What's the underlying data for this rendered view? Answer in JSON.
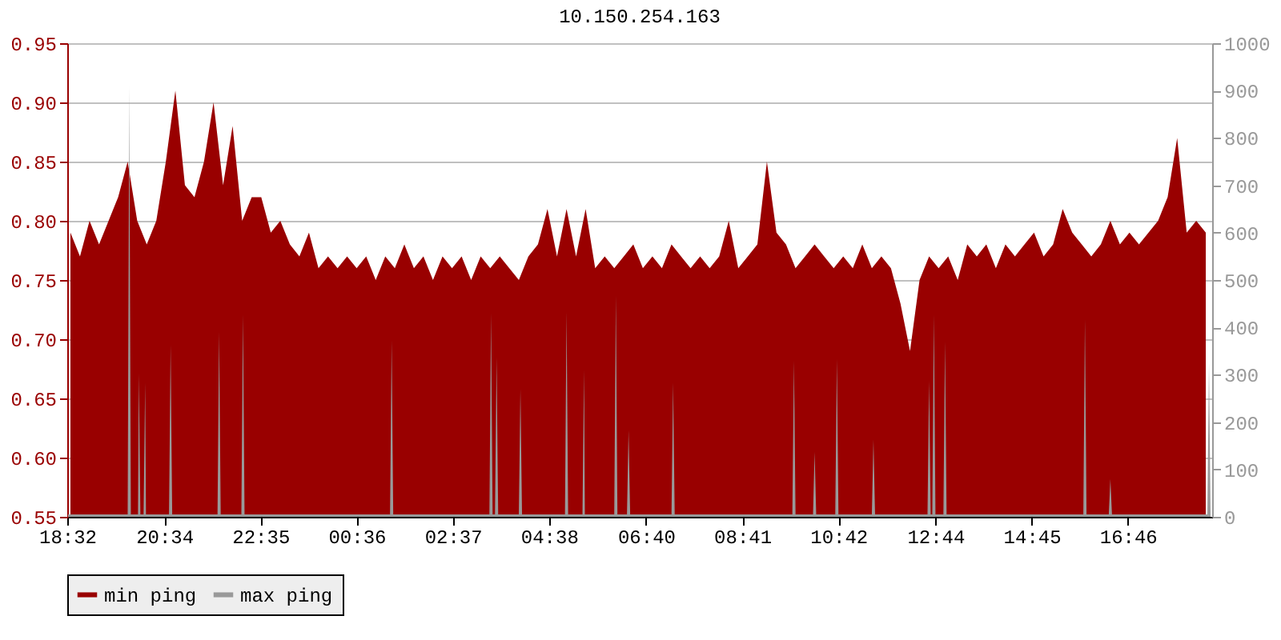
{
  "chart_data": {
    "type": "area",
    "title": "10.150.254.163",
    "xlim": [
      "--01-01T18:32",
      "--01-02T18:32"
    ],
    "xticks": [
      {
        "value": "--01-01T18:32",
        "label": "18:32"
      },
      {
        "value": "--01-01T20:34",
        "label": "20:34"
      },
      {
        "value": "--01-01T22:35",
        "label": "22:35"
      },
      {
        "value": "--01-02T00:36",
        "label": "00:36"
      },
      {
        "value": "--01-02T02:37",
        "label": "02:37"
      },
      {
        "value": "--01-02T04:38",
        "label": "04:38"
      },
      {
        "value": "--01-02T06:40",
        "label": "06:40"
      },
      {
        "value": "--01-02T08:41",
        "label": "08:41"
      },
      {
        "value": "--01-02T10:42",
        "label": "10:42"
      },
      {
        "value": "--01-02T12:44",
        "label": "12:44"
      },
      {
        "value": "--01-02T14:45",
        "label": "14:45"
      },
      {
        "value": "--01-02T16:46",
        "label": "16:46"
      }
    ],
    "ylim": [
      0.55,
      0.95
    ],
    "yticks": [
      0.55,
      {
        "value": 0.6,
        "label": "0.60"
      },
      0.65,
      {
        "value": 0.7,
        "label": "0.70"
      },
      0.75,
      {
        "value": 0.8,
        "label": "0.80"
      },
      0.85,
      {
        "value": 0.9,
        "label": "0.90"
      },
      0.95
    ],
    "y2lim": [
      0,
      1000
    ],
    "y2ticks": [
      0,
      100,
      200,
      300,
      400,
      500,
      600,
      700,
      800,
      900,
      1000
    ],
    "grid": "y",
    "legend": "bottom",
    "series": [
      {
        "name": "min ping",
        "color": "#990000",
        "x": [
          "--01-01T18:36",
          "--01-01T18:48",
          "--01-01T19:00",
          "--01-01T19:12",
          "--01-01T19:24",
          "--01-01T19:36",
          "--01-01T19:48",
          "--01-01T20:00",
          "--01-01T20:12",
          "--01-01T20:24",
          "--01-01T20:36",
          "--01-01T20:48",
          "--01-01T21:00",
          "--01-01T21:12",
          "--01-01T21:24",
          "--01-01T21:36",
          "--01-01T21:48",
          "--01-01T22:00",
          "--01-01T22:12",
          "--01-01T22:24",
          "--01-01T22:36",
          "--01-01T22:48",
          "--01-01T23:00",
          "--01-01T23:12",
          "--01-01T23:24",
          "--01-01T23:36",
          "--01-01T23:48",
          "--01-02T00:00",
          "--01-02T00:12",
          "--01-02T00:24",
          "--01-02T00:36",
          "--01-02T00:48",
          "--01-02T01:00",
          "--01-02T01:12",
          "--01-02T01:24",
          "--01-02T01:36",
          "--01-02T01:48",
          "--01-02T02:00",
          "--01-02T02:12",
          "--01-02T02:24",
          "--01-02T02:36",
          "--01-02T02:48",
          "--01-02T03:00",
          "--01-02T03:12",
          "--01-02T03:24",
          "--01-02T03:36",
          "--01-02T03:48",
          "--01-02T04:00",
          "--01-02T04:12",
          "--01-02T04:24",
          "--01-02T04:36",
          "--01-02T04:48",
          "--01-02T05:00",
          "--01-02T05:12",
          "--01-02T05:24",
          "--01-02T05:36",
          "--01-02T05:48",
          "--01-02T06:00",
          "--01-02T06:12",
          "--01-02T06:24",
          "--01-02T06:36",
          "--01-02T06:48",
          "--01-02T07:00",
          "--01-02T07:12",
          "--01-02T07:24",
          "--01-02T07:36",
          "--01-02T07:48",
          "--01-02T08:00",
          "--01-02T08:12",
          "--01-02T08:24",
          "--01-02T08:36",
          "--01-02T08:48",
          "--01-02T09:00",
          "--01-02T09:12",
          "--01-02T09:24",
          "--01-02T09:36",
          "--01-02T09:48",
          "--01-02T10:00",
          "--01-02T10:12",
          "--01-02T10:24",
          "--01-02T10:36",
          "--01-02T10:48",
          "--01-02T11:00",
          "--01-02T11:12",
          "--01-02T11:24",
          "--01-02T11:36",
          "--01-02T11:48",
          "--01-02T12:00",
          "--01-02T12:12",
          "--01-02T12:24",
          "--01-02T12:36",
          "--01-02T12:48",
          "--01-02T13:00",
          "--01-02T13:12",
          "--01-02T13:24",
          "--01-02T13:36",
          "--01-02T13:48",
          "--01-02T14:00",
          "--01-02T14:12",
          "--01-02T14:24",
          "--01-02T14:36",
          "--01-02T14:48",
          "--01-02T15:00",
          "--01-02T15:12",
          "--01-02T15:24",
          "--01-02T15:36",
          "--01-02T15:48",
          "--01-02T16:00",
          "--01-02T16:12",
          "--01-02T16:24",
          "--01-02T16:36",
          "--01-02T16:48",
          "--01-02T17:00",
          "--01-02T17:12",
          "--01-02T17:24",
          "--01-02T17:36",
          "--01-02T17:48",
          "--01-02T18:00",
          "--01-02T18:12",
          "--01-02T18:24"
        ],
        "values": [
          0.79,
          0.77,
          0.8,
          0.78,
          0.8,
          0.82,
          0.85,
          0.8,
          0.78,
          0.8,
          0.85,
          0.91,
          0.83,
          0.82,
          0.85,
          0.9,
          0.83,
          0.88,
          0.8,
          0.82,
          0.82,
          0.79,
          0.8,
          0.78,
          0.77,
          0.79,
          0.76,
          0.77,
          0.76,
          0.77,
          0.76,
          0.77,
          0.75,
          0.77,
          0.76,
          0.78,
          0.76,
          0.77,
          0.75,
          0.77,
          0.76,
          0.77,
          0.75,
          0.77,
          0.76,
          0.77,
          0.76,
          0.75,
          0.77,
          0.78,
          0.81,
          0.77,
          0.81,
          0.77,
          0.81,
          0.76,
          0.77,
          0.76,
          0.77,
          0.78,
          0.76,
          0.77,
          0.76,
          0.78,
          0.77,
          0.76,
          0.77,
          0.76,
          0.77,
          0.8,
          0.76,
          0.77,
          0.78,
          0.85,
          0.79,
          0.78,
          0.76,
          0.77,
          0.78,
          0.77,
          0.76,
          0.77,
          0.76,
          0.78,
          0.76,
          0.77,
          0.76,
          0.73,
          0.69,
          0.75,
          0.77,
          0.76,
          0.77,
          0.75,
          0.78,
          0.77,
          0.78,
          0.76,
          0.78,
          0.77,
          0.78,
          0.79,
          0.77,
          0.78,
          0.81,
          0.79,
          0.78,
          0.77,
          0.78,
          0.8,
          0.78,
          0.79,
          0.78,
          0.79,
          0.8,
          0.82,
          0.87,
          0.79,
          0.8,
          0.79
        ]
      },
      {
        "name": "max ping",
        "color": "#999999",
        "axis": "y2",
        "x": [
          "--01-01T18:33",
          "--01-01T19:48",
          "--01-01T19:50",
          "--01-01T19:52",
          "--01-01T20:01",
          "--01-01T20:02",
          "--01-01T20:04",
          "--01-01T20:08",
          "--01-01T20:10",
          "--01-01T20:11",
          "--01-01T20:40",
          "--01-01T20:42",
          "--01-01T20:44",
          "--01-01T21:41",
          "--01-01T21:43",
          "--01-01T21:45",
          "--01-01T22:11",
          "--01-01T22:13",
          "--01-01T22:15",
          "--01-02T01:18",
          "--01-02T01:20",
          "--01-02T01:22",
          "--01-02T03:23",
          "--01-02T03:25",
          "--01-02T03:27",
          "--01-02T03:30",
          "--01-02T03:32",
          "--01-02T03:34",
          "--01-02T04:00",
          "--01-02T04:02",
          "--01-02T04:04",
          "--01-02T04:58",
          "--01-02T05:00",
          "--01-02T05:02",
          "--01-02T05:20",
          "--01-02T05:22",
          "--01-02T05:23",
          "--01-02T06:00",
          "--01-02T06:02",
          "--01-02T06:04",
          "--01-02T06:16",
          "--01-02T06:18",
          "--01-02T06:20",
          "--01-02T07:12",
          "--01-02T07:14",
          "--01-02T07:16",
          "--01-02T09:44",
          "--01-02T09:46",
          "--01-02T09:48",
          "--01-02T10:10",
          "--01-02T10:12",
          "--01-02T10:14",
          "--01-02T10:38",
          "--01-02T10:40",
          "--01-02T10:42",
          "--01-02T11:24",
          "--01-02T11:26",
          "--01-02T11:28",
          "--01-02T12:34",
          "--01-02T12:36",
          "--01-02T12:38",
          "--01-02T12:40",
          "--01-02T12:42",
          "--01-02T12:44",
          "--01-02T12:54",
          "--01-02T12:56",
          "--01-02T12:58",
          "--01-02T15:50",
          "--01-02T15:52",
          "--01-02T15:54",
          "--01-02T16:22",
          "--01-02T16:24",
          "--01-02T16:26",
          "--01-02T18:26",
          "--01-02T18:28",
          "--01-02T18:30"
        ],
        "values": [
          5,
          5,
          910,
          5,
          5,
          303,
          5,
          5,
          283,
          5,
          5,
          363,
          5,
          5,
          390,
          5,
          5,
          427,
          5,
          5,
          373,
          5,
          5,
          430,
          5,
          5,
          337,
          5,
          5,
          270,
          5,
          5,
          433,
          5,
          5,
          310,
          5,
          5,
          467,
          5,
          5,
          183,
          5,
          5,
          283,
          5,
          5,
          330,
          5,
          5,
          137,
          5,
          5,
          333,
          5,
          5,
          163,
          5,
          5,
          287,
          5,
          5,
          427,
          5,
          5,
          370,
          5,
          5,
          417,
          5,
          5,
          80,
          5,
          5,
          323,
          5
        ]
      }
    ]
  }
}
